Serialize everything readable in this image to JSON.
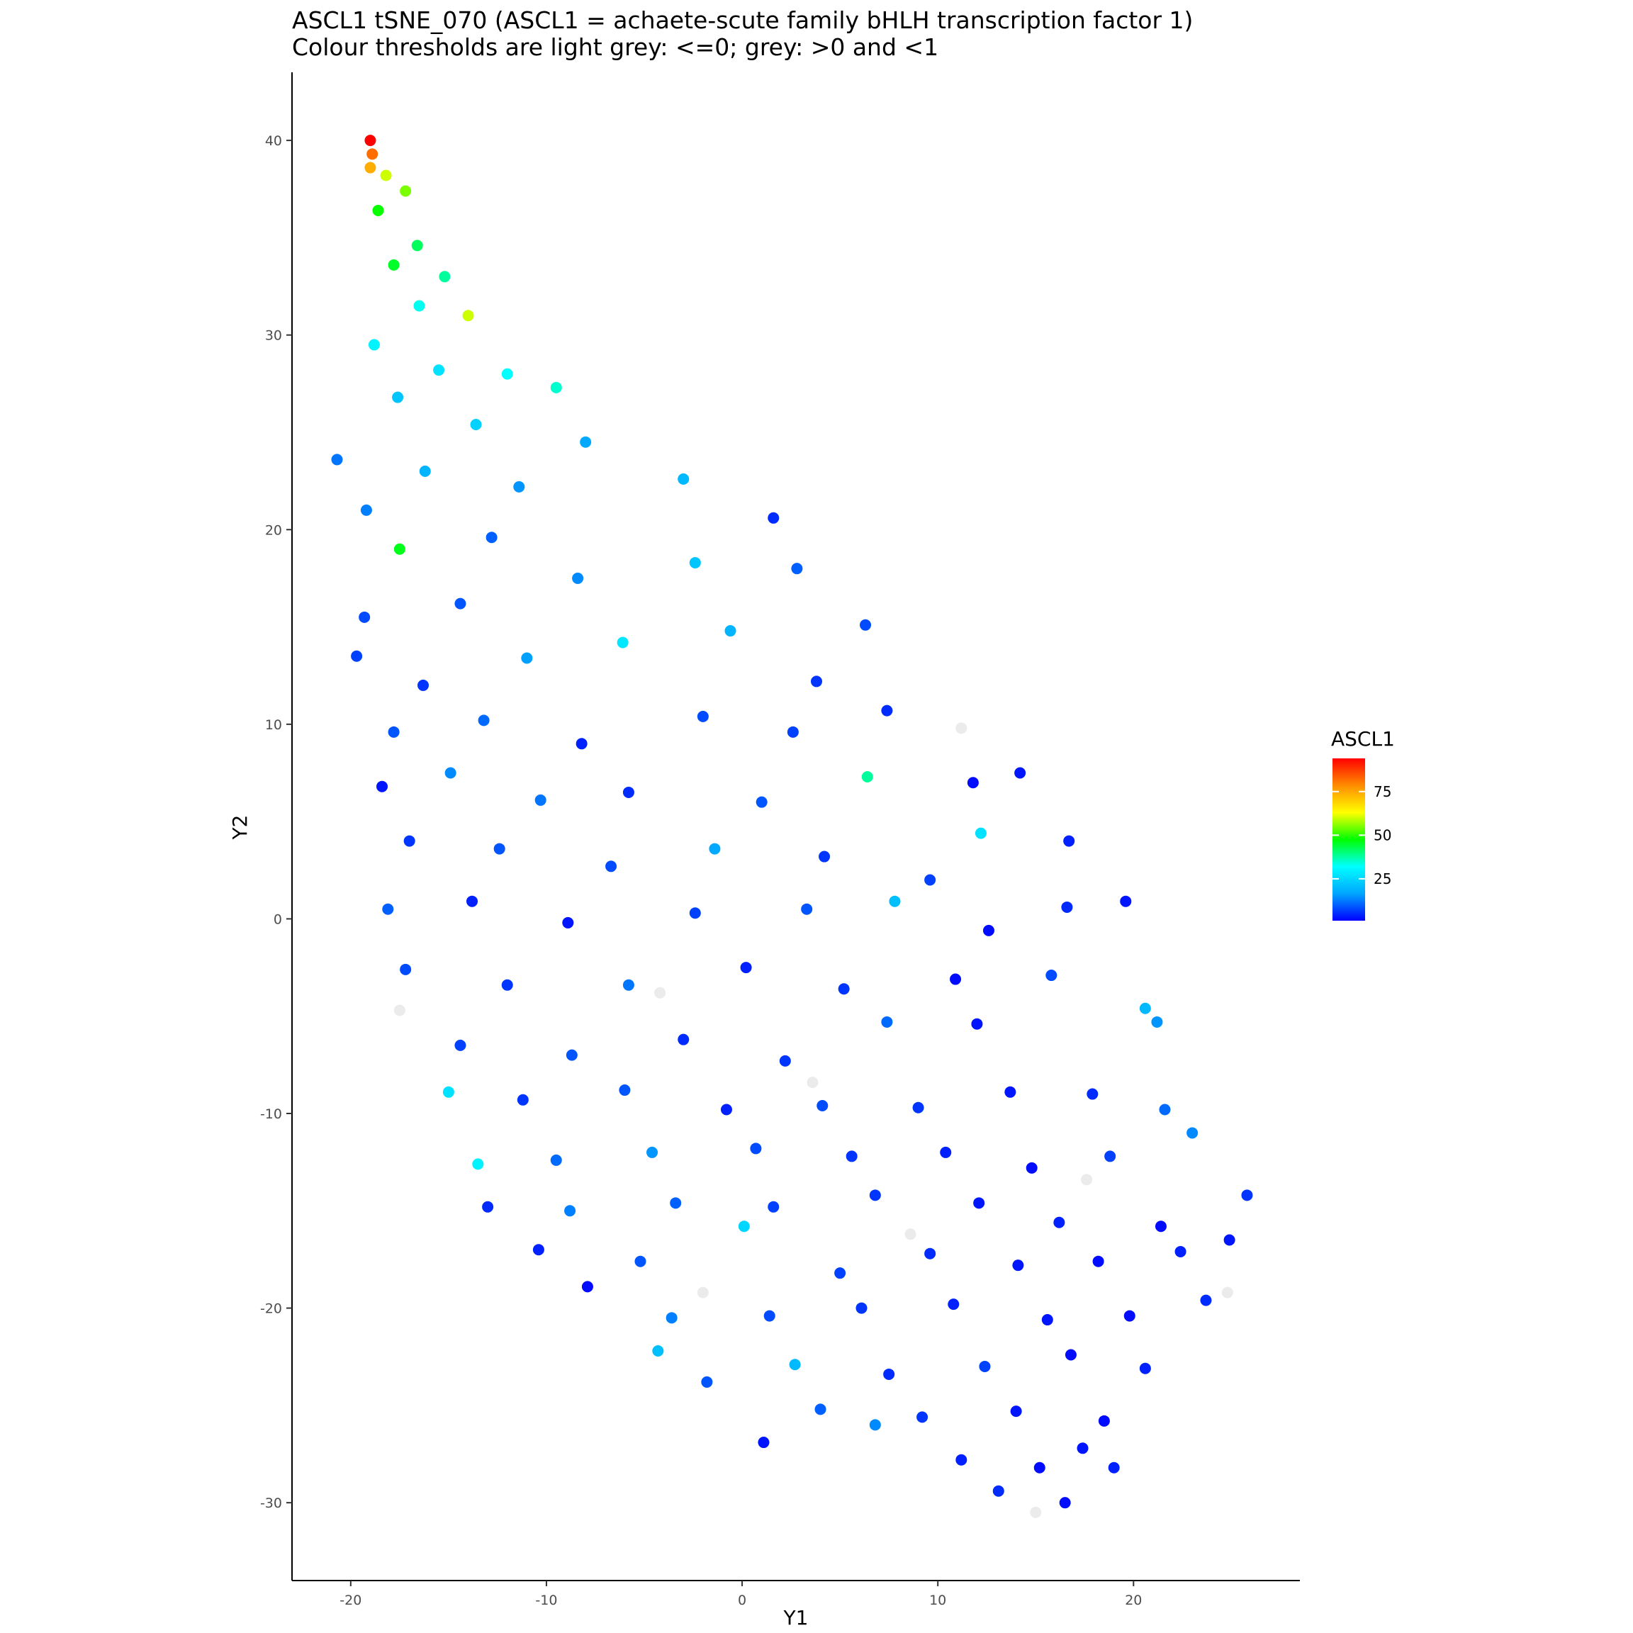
{
  "chart_data": {
    "type": "scatter",
    "title": "ASCL1 tSNE_070 (ASCL1 = achaete-scute family bHLH transcription factor 1)",
    "subtitle": "Colour thresholds are light grey: <=0; grey: >0 and <1",
    "xlabel": "Y1",
    "ylabel": "Y2",
    "xlim": [
      -23,
      28.5
    ],
    "ylim": [
      -34,
      43.5
    ],
    "x_ticks": [
      -20,
      -10,
      0,
      10,
      20
    ],
    "y_ticks": [
      -30,
      -20,
      -10,
      0,
      10,
      20,
      30,
      40
    ],
    "grid": false,
    "legend": {
      "title": "ASCL1",
      "placement": "right",
      "range": [
        1,
        94
      ],
      "ticks": [
        25,
        50,
        75
      ],
      "colors": [
        "#0000ff",
        "#00a5ff",
        "#00ffff",
        "#00ff00",
        "#ffff00",
        "#ff8c00",
        "#ff0000"
      ]
    },
    "colors": {
      "light_grey": "#ebebeb",
      "grey": "#bebebe"
    },
    "series": [
      {
        "points": [
          {
            "x": -19.0,
            "y": 40.0,
            "v": 94
          },
          {
            "x": -18.9,
            "y": 39.3,
            "v": 82
          },
          {
            "x": -19.0,
            "y": 38.6,
            "v": 74
          },
          {
            "x": -18.2,
            "y": 38.2,
            "v": 60
          },
          {
            "x": -17.2,
            "y": 37.4,
            "v": 55
          },
          {
            "x": -18.6,
            "y": 36.4,
            "v": 48
          },
          {
            "x": -16.6,
            "y": 34.6,
            "v": 42
          },
          {
            "x": -17.8,
            "y": 33.6,
            "v": 45
          },
          {
            "x": -15.2,
            "y": 33.0,
            "v": 38
          },
          {
            "x": -16.5,
            "y": 31.5,
            "v": 33
          },
          {
            "x": -14.0,
            "y": 31.0,
            "v": 60
          },
          {
            "x": -18.8,
            "y": 29.5,
            "v": 30
          },
          {
            "x": -15.5,
            "y": 28.2,
            "v": 27
          },
          {
            "x": -12.0,
            "y": 28.0,
            "v": 32
          },
          {
            "x": -17.6,
            "y": 26.8,
            "v": 22
          },
          {
            "x": -13.6,
            "y": 25.4,
            "v": 24
          },
          {
            "x": -9.5,
            "y": 27.3,
            "v": 35
          },
          {
            "x": -20.7,
            "y": 23.6,
            "v": 12
          },
          {
            "x": -16.2,
            "y": 23.0,
            "v": 19
          },
          {
            "x": -11.4,
            "y": 22.2,
            "v": 15
          },
          {
            "x": -8.0,
            "y": 24.5,
            "v": 17
          },
          {
            "x": -19.2,
            "y": 21.0,
            "v": 13
          },
          {
            "x": -17.5,
            "y": 19.0,
            "v": 46
          },
          {
            "x": -12.8,
            "y": 19.6,
            "v": 10
          },
          {
            "x": -3.0,
            "y": 22.6,
            "v": 20
          },
          {
            "x": 1.6,
            "y": 20.6,
            "v": 5
          },
          {
            "x": -19.3,
            "y": 15.5,
            "v": 8
          },
          {
            "x": -14.4,
            "y": 16.2,
            "v": 9
          },
          {
            "x": -8.4,
            "y": 17.5,
            "v": 14
          },
          {
            "x": -2.4,
            "y": 18.3,
            "v": 22
          },
          {
            "x": 2.8,
            "y": 18.0,
            "v": 10
          },
          {
            "x": 6.3,
            "y": 15.1,
            "v": 8
          },
          {
            "x": -19.7,
            "y": 13.5,
            "v": 7
          },
          {
            "x": -16.3,
            "y": 12.0,
            "v": 6
          },
          {
            "x": -11.0,
            "y": 13.4,
            "v": 16
          },
          {
            "x": -6.1,
            "y": 14.2,
            "v": 28
          },
          {
            "x": -0.6,
            "y": 14.8,
            "v": 19
          },
          {
            "x": 3.8,
            "y": 12.2,
            "v": 6
          },
          {
            "x": -17.8,
            "y": 9.6,
            "v": 9
          },
          {
            "x": -13.2,
            "y": 10.2,
            "v": 11
          },
          {
            "x": -8.2,
            "y": 9.0,
            "v": 4
          },
          {
            "x": -2.0,
            "y": 10.4,
            "v": 8
          },
          {
            "x": 2.6,
            "y": 9.6,
            "v": 7
          },
          {
            "x": 7.4,
            "y": 10.7,
            "v": 5
          },
          {
            "x": 11.2,
            "y": 9.8,
            "v": 0
          },
          {
            "x": -18.4,
            "y": 6.8,
            "v": 3
          },
          {
            "x": -14.9,
            "y": 7.5,
            "v": 14
          },
          {
            "x": -10.3,
            "y": 6.1,
            "v": 12
          },
          {
            "x": -5.8,
            "y": 6.5,
            "v": 5
          },
          {
            "x": 1.0,
            "y": 6.0,
            "v": 9
          },
          {
            "x": 6.4,
            "y": 7.3,
            "v": 38
          },
          {
            "x": 11.8,
            "y": 7.0,
            "v": 2
          },
          {
            "x": 14.2,
            "y": 7.5,
            "v": 3
          },
          {
            "x": -17.0,
            "y": 4.0,
            "v": 6
          },
          {
            "x": -12.4,
            "y": 3.6,
            "v": 9
          },
          {
            "x": -6.7,
            "y": 2.7,
            "v": 8
          },
          {
            "x": -1.4,
            "y": 3.6,
            "v": 17
          },
          {
            "x": 4.2,
            "y": 3.2,
            "v": 6
          },
          {
            "x": 9.6,
            "y": 2.0,
            "v": 7
          },
          {
            "x": 12.2,
            "y": 4.4,
            "v": 27
          },
          {
            "x": 16.7,
            "y": 4.0,
            "v": 4
          },
          {
            "x": -18.1,
            "y": 0.5,
            "v": 10
          },
          {
            "x": -13.8,
            "y": 0.9,
            "v": 4
          },
          {
            "x": -8.9,
            "y": -0.2,
            "v": 3
          },
          {
            "x": -2.4,
            "y": 0.3,
            "v": 7
          },
          {
            "x": 3.3,
            "y": 0.5,
            "v": 9
          },
          {
            "x": 7.8,
            "y": 0.9,
            "v": 21
          },
          {
            "x": 12.6,
            "y": -0.6,
            "v": 2
          },
          {
            "x": 16.6,
            "y": 0.6,
            "v": 5
          },
          {
            "x": 19.6,
            "y": 0.9,
            "v": 3
          },
          {
            "x": -17.2,
            "y": -2.6,
            "v": 8
          },
          {
            "x": -12.0,
            "y": -3.4,
            "v": 6
          },
          {
            "x": -5.8,
            "y": -3.4,
            "v": 12
          },
          {
            "x": 0.2,
            "y": -2.5,
            "v": 4
          },
          {
            "x": 5.2,
            "y": -3.6,
            "v": 6
          },
          {
            "x": 10.9,
            "y": -3.1,
            "v": 2
          },
          {
            "x": 15.8,
            "y": -2.9,
            "v": 8
          },
          {
            "x": -17.5,
            "y": -4.7,
            "v": 0
          },
          {
            "x": -14.4,
            "y": -6.5,
            "v": 7
          },
          {
            "x": -8.7,
            "y": -7.0,
            "v": 9
          },
          {
            "x": -3.0,
            "y": -6.2,
            "v": 5
          },
          {
            "x": 2.2,
            "y": -7.3,
            "v": 6
          },
          {
            "x": 7.4,
            "y": -5.3,
            "v": 11
          },
          {
            "x": 12.0,
            "y": -5.4,
            "v": 3
          },
          {
            "x": 20.6,
            "y": -4.6,
            "v": 20
          },
          {
            "x": 21.2,
            "y": -5.3,
            "v": 15
          },
          {
            "x": -15.0,
            "y": -8.9,
            "v": 27
          },
          {
            "x": -11.2,
            "y": -9.3,
            "v": 6
          },
          {
            "x": -6.0,
            "y": -8.8,
            "v": 9
          },
          {
            "x": -0.8,
            "y": -9.8,
            "v": 4
          },
          {
            "x": 4.1,
            "y": -9.6,
            "v": 8
          },
          {
            "x": 9.0,
            "y": -9.7,
            "v": 6
          },
          {
            "x": 13.7,
            "y": -8.9,
            "v": 3
          },
          {
            "x": 17.9,
            "y": -9.0,
            "v": 5
          },
          {
            "x": 21.6,
            "y": -9.8,
            "v": 11
          },
          {
            "x": -13.5,
            "y": -12.6,
            "v": 30
          },
          {
            "x": -9.5,
            "y": -12.4,
            "v": 11
          },
          {
            "x": -4.6,
            "y": -12.0,
            "v": 15
          },
          {
            "x": 0.7,
            "y": -11.8,
            "v": 8
          },
          {
            "x": 5.6,
            "y": -12.2,
            "v": 6
          },
          {
            "x": 10.4,
            "y": -12.0,
            "v": 4
          },
          {
            "x": 14.8,
            "y": -12.8,
            "v": 2
          },
          {
            "x": 18.8,
            "y": -12.2,
            "v": 7
          },
          {
            "x": 23.0,
            "y": -11.0,
            "v": 14
          },
          {
            "x": -13.0,
            "y": -14.8,
            "v": 5
          },
          {
            "x": -8.8,
            "y": -15.0,
            "v": 13
          },
          {
            "x": -3.4,
            "y": -14.6,
            "v": 10
          },
          {
            "x": 1.6,
            "y": -14.8,
            "v": 7
          },
          {
            "x": 6.8,
            "y": -14.2,
            "v": 6
          },
          {
            "x": 12.1,
            "y": -14.6,
            "v": 3
          },
          {
            "x": 16.2,
            "y": -15.6,
            "v": 4
          },
          {
            "x": 21.4,
            "y": -15.8,
            "v": 2
          },
          {
            "x": 25.8,
            "y": -14.2,
            "v": 6
          },
          {
            "x": -10.4,
            "y": -17.0,
            "v": 4
          },
          {
            "x": -5.2,
            "y": -17.6,
            "v": 9
          },
          {
            "x": 0.1,
            "y": -15.8,
            "v": 25
          },
          {
            "x": 5.0,
            "y": -18.2,
            "v": 7
          },
          {
            "x": 9.6,
            "y": -17.2,
            "v": 5
          },
          {
            "x": 14.1,
            "y": -17.8,
            "v": 3
          },
          {
            "x": 18.2,
            "y": -17.6,
            "v": 2
          },
          {
            "x": 22.4,
            "y": -17.1,
            "v": 4
          },
          {
            "x": 24.9,
            "y": -16.5,
            "v": 3
          },
          {
            "x": -7.9,
            "y": -18.9,
            "v": 2
          },
          {
            "x": -3.6,
            "y": -20.5,
            "v": 13
          },
          {
            "x": 1.4,
            "y": -20.4,
            "v": 8
          },
          {
            "x": 6.1,
            "y": -20.0,
            "v": 6
          },
          {
            "x": 10.8,
            "y": -19.8,
            "v": 4
          },
          {
            "x": 15.6,
            "y": -20.6,
            "v": 3
          },
          {
            "x": 19.8,
            "y": -20.4,
            "v": 2
          },
          {
            "x": 23.7,
            "y": -19.6,
            "v": 5
          },
          {
            "x": -4.3,
            "y": -22.2,
            "v": 21
          },
          {
            "x": -1.8,
            "y": -23.8,
            "v": 9
          },
          {
            "x": 2.7,
            "y": -22.9,
            "v": 20
          },
          {
            "x": 7.5,
            "y": -23.4,
            "v": 5
          },
          {
            "x": 12.4,
            "y": -23.0,
            "v": 7
          },
          {
            "x": 16.8,
            "y": -22.4,
            "v": 2
          },
          {
            "x": 20.6,
            "y": -23.1,
            "v": 4
          },
          {
            "x": 4.0,
            "y": -25.2,
            "v": 10
          },
          {
            "x": 6.8,
            "y": -26.0,
            "v": 14
          },
          {
            "x": 9.2,
            "y": -25.6,
            "v": 6
          },
          {
            "x": 14.0,
            "y": -25.3,
            "v": 3
          },
          {
            "x": 18.5,
            "y": -25.8,
            "v": 2
          },
          {
            "x": 1.1,
            "y": -26.9,
            "v": 3
          },
          {
            "x": 11.2,
            "y": -27.8,
            "v": 4
          },
          {
            "x": 15.2,
            "y": -28.2,
            "v": 2
          },
          {
            "x": 17.4,
            "y": -27.2,
            "v": 3
          },
          {
            "x": 13.1,
            "y": -29.4,
            "v": 5
          },
          {
            "x": 16.5,
            "y": -30.0,
            "v": 2
          },
          {
            "x": 15.0,
            "y": -30.5,
            "v": 0
          },
          {
            "x": 19.0,
            "y": -28.2,
            "v": 4
          },
          {
            "x": -4.2,
            "y": -3.8,
            "v": 0
          },
          {
            "x": 3.6,
            "y": -8.4,
            "v": 0
          },
          {
            "x": 8.6,
            "y": -16.2,
            "v": 0
          },
          {
            "x": -2.0,
            "y": -19.2,
            "v": 0
          },
          {
            "x": 17.6,
            "y": -13.4,
            "v": 0
          },
          {
            "x": 24.8,
            "y": -19.2,
            "v": 0
          }
        ]
      }
    ]
  }
}
